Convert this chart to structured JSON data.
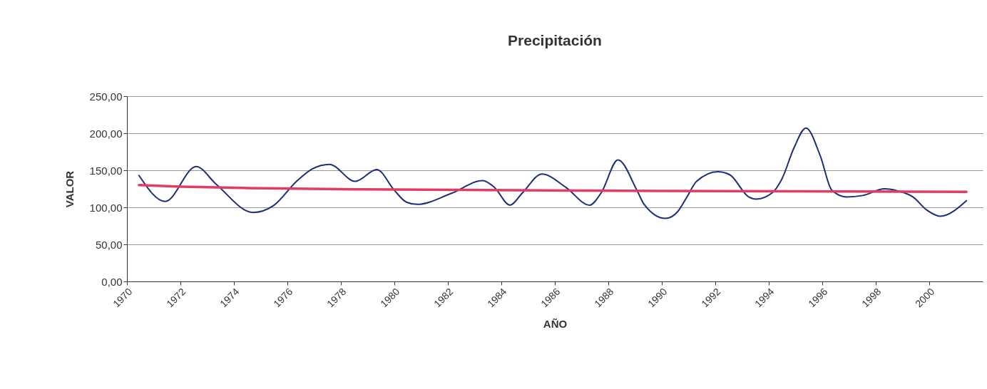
{
  "chart_data": {
    "type": "line",
    "title": "Precipitación",
    "xlabel": "AÑO",
    "ylabel": "VALOR",
    "xlim": [
      1970,
      2002
    ],
    "xticks": [
      1970,
      1972,
      1974,
      1976,
      1978,
      1980,
      1982,
      1984,
      1986,
      1988,
      1990,
      1992,
      1994,
      1996,
      1998,
      2000
    ],
    "ylim": [
      0,
      250
    ],
    "yticks": [
      {
        "value": 0,
        "label": "0,00"
      },
      {
        "value": 50,
        "label": "50,00"
      },
      {
        "value": 100,
        "label": "100,00"
      },
      {
        "value": 150,
        "label": "150,00"
      },
      {
        "value": 200,
        "label": "200,00"
      },
      {
        "value": 250,
        "label": "250,00"
      }
    ],
    "grid": "y",
    "marker": "none",
    "line_style": "solid",
    "series": [
      {
        "color": "#1c2f78",
        "x": [
          1970.45,
          1971.43,
          1972.59,
          1973.34,
          1974.72,
          1975.47,
          1976.37,
          1976.94,
          1977.57,
          1978.54,
          1979.34,
          1980.0,
          1980.45,
          1980.85,
          1982.14,
          1983.3,
          1983.74,
          1984.32,
          1984.8,
          1985.52,
          1986.41,
          1987.3,
          1987.74,
          1988.36,
          1989.07,
          1989.34,
          1990.14,
          1990.59,
          1990.94,
          1991.3,
          1992.1,
          1992.54,
          1993.25,
          1993.52,
          1994.14,
          1994.5,
          1994.94,
          1995.39,
          1995.92,
          1996.36,
          1996.9,
          1997.52,
          1998.32,
          1998.85,
          1999.39,
          1999.92,
          2000.41,
          2001.39
        ],
        "values": [
          143,
          108,
          155,
          131,
          93,
          102,
          136,
          152,
          158,
          135,
          151,
          123,
          107,
          104,
          119,
          136,
          127,
          103,
          120,
          145,
          127,
          103,
          120,
          164,
          123,
          104,
          85,
          94,
          114,
          135,
          148,
          144,
          114,
          111,
          120,
          139,
          180,
          207,
          170,
          123,
          114,
          116,
          125,
          122,
          114,
          96,
          88,
          109
        ]
      },
      {
        "type": "line",
        "color": "#e23c62",
        "x": [
          1970.45,
          1972,
          1974.5,
          1980,
          1990,
          2001.39
        ],
        "values": [
          130,
          128,
          126,
          124,
          122,
          121
        ]
      }
    ]
  }
}
